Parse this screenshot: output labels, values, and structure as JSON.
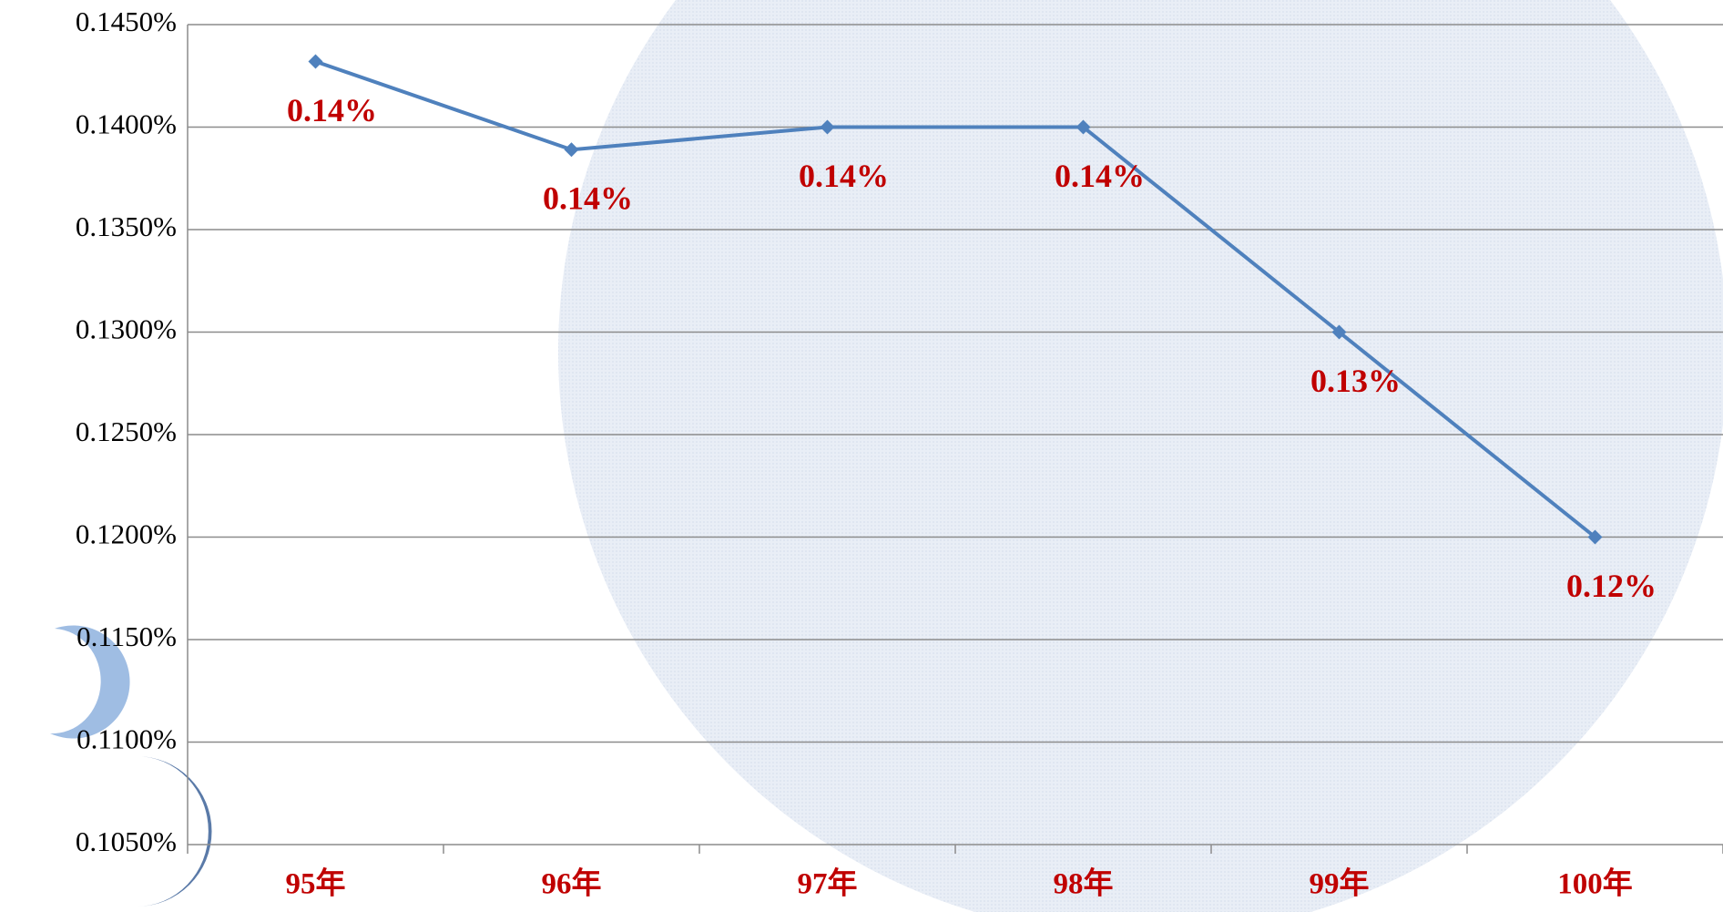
{
  "chart_data": {
    "type": "line",
    "categories": [
      "95年",
      "96年",
      "97年",
      "98年",
      "99年",
      "100年"
    ],
    "series": [
      {
        "name": null,
        "color": "#4f81bd",
        "values": [
          0.1432,
          0.1389,
          0.14,
          0.14,
          0.13,
          0.12
        ],
        "value_labels": [
          "0.14%",
          "0.14%",
          "0.14%",
          "0.14%",
          "0.13%",
          "0.12%"
        ]
      }
    ],
    "ylim": [
      0.105,
      0.145
    ],
    "yticks": [
      {
        "value": 0.105,
        "label": "0.1050%"
      },
      {
        "value": 0.11,
        "label": "0.1100%"
      },
      {
        "value": 0.115,
        "label": "0.1150%"
      },
      {
        "value": 0.12,
        "label": "0.1200%"
      },
      {
        "value": 0.125,
        "label": "0.1250%"
      },
      {
        "value": 0.13,
        "label": "0.1300%"
      },
      {
        "value": 0.135,
        "label": "0.1350%"
      },
      {
        "value": 0.14,
        "label": "0.1400%"
      },
      {
        "value": 0.145,
        "label": "0.1450%"
      }
    ],
    "grid": true
  }
}
